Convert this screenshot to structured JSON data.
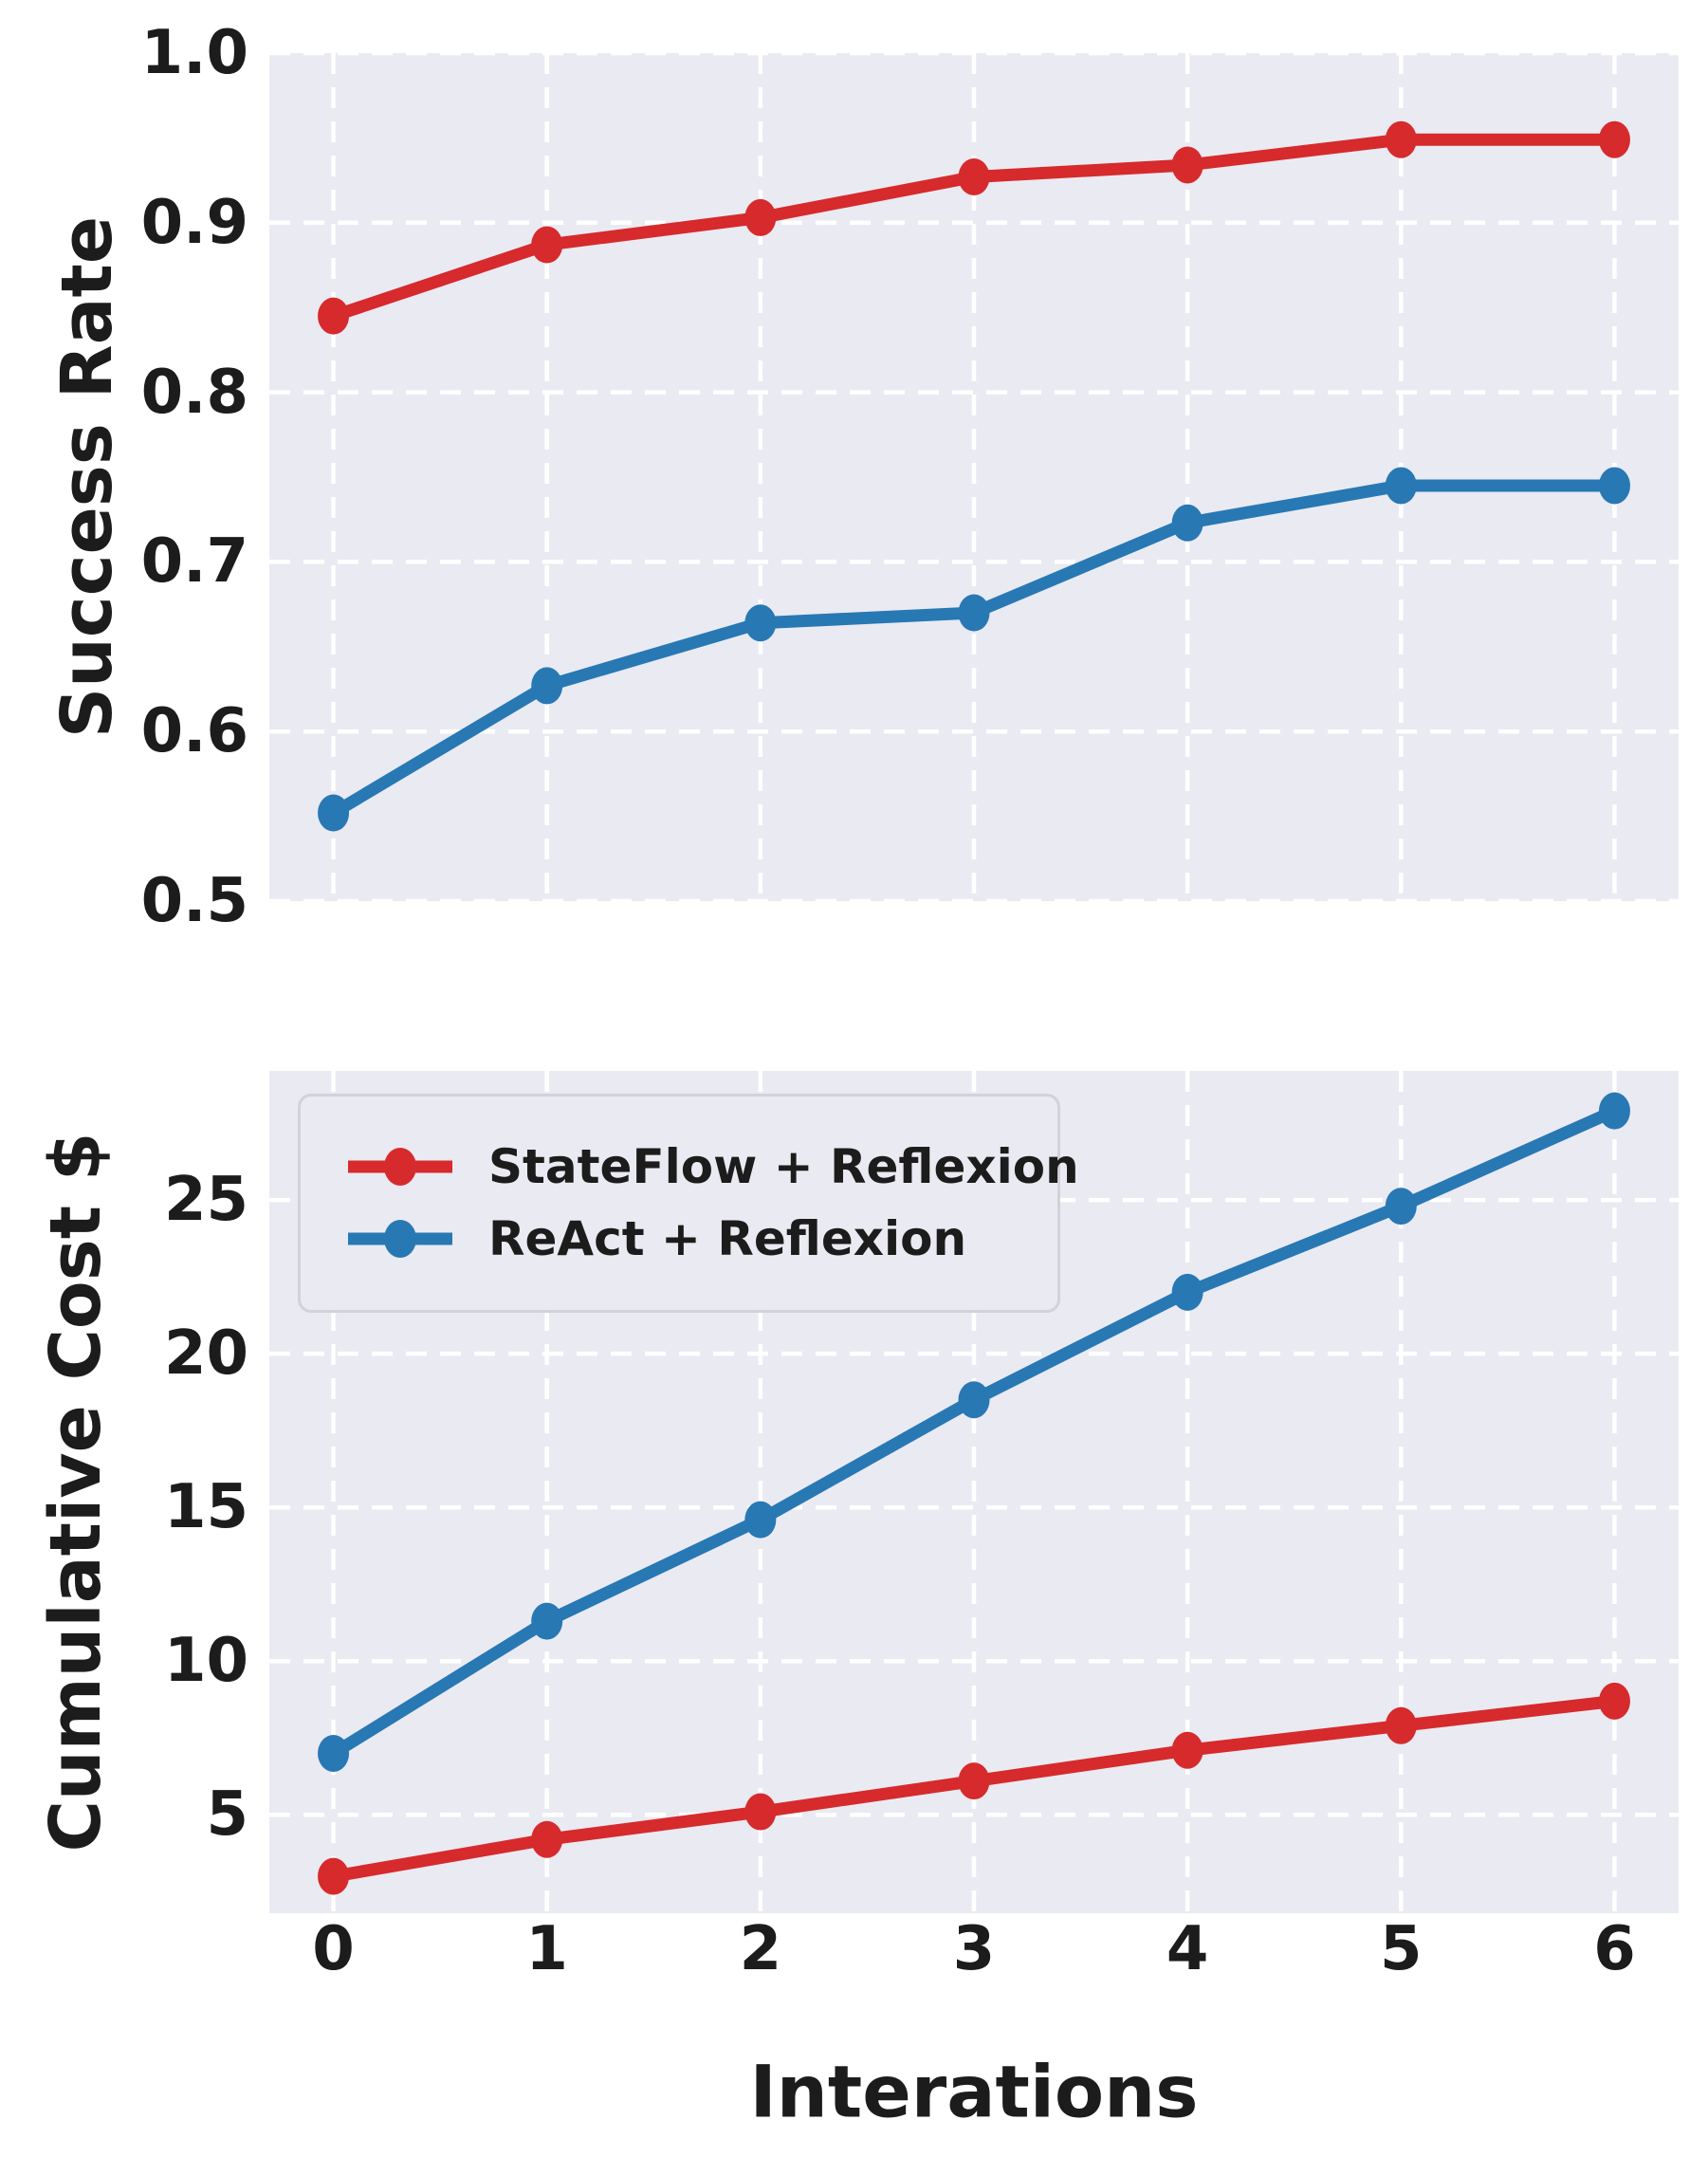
{
  "figure": {
    "plot_bg": "#eaeaf2",
    "grid_color": "#ffffff",
    "text_color": "#1c1c1c",
    "red": "#d62a2c",
    "blue": "#2878b4",
    "legend_border": "#d2d2d8"
  },
  "chart_data": [
    {
      "type": "line",
      "ylabel": "Success Rate",
      "xlabel": "",
      "x": [
        0,
        1,
        2,
        3,
        4,
        5,
        6
      ],
      "xlim": [
        -0.3,
        6.3
      ],
      "ylim": [
        0.5,
        1.0
      ],
      "yticks": [
        1.0,
        0.9,
        0.8,
        0.7,
        0.6,
        0.5
      ],
      "ytick_labels": [
        "1.0",
        "0.9",
        "0.8",
        "0.7",
        "0.6",
        "0.5"
      ],
      "xticks": [
        0,
        1,
        2,
        3,
        4,
        5,
        6
      ],
      "xtick_labels": [],
      "grid": true,
      "series": [
        {
          "name": "StateFlow + Reflexion",
          "color": "#d62a2c",
          "values": [
            0.845,
            0.887,
            0.903,
            0.927,
            0.934,
            0.949,
            0.949
          ]
        },
        {
          "name": "ReAct + Reflexion",
          "color": "#2878b4",
          "values": [
            0.552,
            0.627,
            0.664,
            0.67,
            0.723,
            0.745,
            0.745
          ]
        }
      ]
    },
    {
      "type": "line",
      "ylabel": "Cumulative Cost $",
      "xlabel": "Interations",
      "x": [
        0,
        1,
        2,
        3,
        4,
        5,
        6
      ],
      "xlim": [
        -0.3,
        6.3
      ],
      "ylim": [
        1.8,
        29.2
      ],
      "yticks": [
        25,
        20,
        15,
        10,
        5
      ],
      "ytick_labels": [
        "25",
        "20",
        "15",
        "10",
        "5"
      ],
      "xticks": [
        0,
        1,
        2,
        3,
        4,
        5,
        6
      ],
      "xtick_labels": [
        "0",
        "1",
        "2",
        "3",
        "4",
        "5",
        "6"
      ],
      "grid": true,
      "legend_position": "upper-left",
      "series": [
        {
          "name": "StateFlow + Reflexion",
          "color": "#d62a2c",
          "values": [
            3.0,
            4.2,
            5.1,
            6.1,
            7.1,
            7.9,
            8.7
          ]
        },
        {
          "name": "ReAct + Reflexion",
          "color": "#2878b4",
          "values": [
            7.0,
            11.3,
            14.6,
            18.5,
            22.0,
            24.8,
            27.9
          ]
        }
      ]
    }
  ]
}
